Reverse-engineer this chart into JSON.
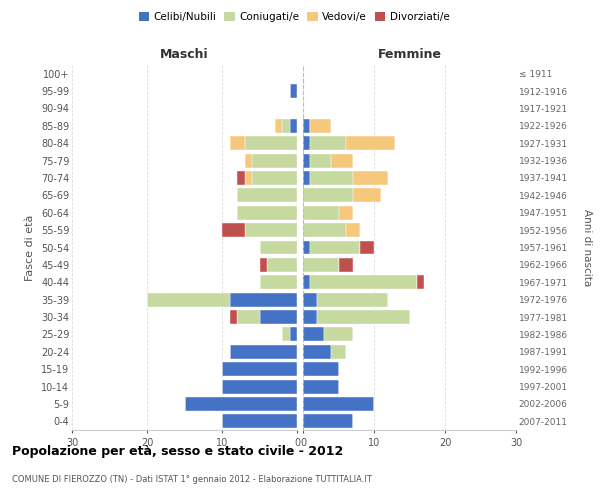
{
  "age_groups": [
    "0-4",
    "5-9",
    "10-14",
    "15-19",
    "20-24",
    "25-29",
    "30-34",
    "35-39",
    "40-44",
    "45-49",
    "50-54",
    "55-59",
    "60-64",
    "65-69",
    "70-74",
    "75-79",
    "80-84",
    "85-89",
    "90-94",
    "95-99",
    "100+"
  ],
  "birth_years": [
    "2007-2011",
    "2002-2006",
    "1997-2001",
    "1992-1996",
    "1987-1991",
    "1982-1986",
    "1977-1981",
    "1972-1976",
    "1967-1971",
    "1962-1966",
    "1957-1961",
    "1952-1956",
    "1947-1951",
    "1942-1946",
    "1937-1941",
    "1932-1936",
    "1927-1931",
    "1922-1926",
    "1917-1921",
    "1912-1916",
    "≤ 1911"
  ],
  "male": {
    "celibinubili": [
      10,
      15,
      10,
      10,
      9,
      1,
      5,
      9,
      0,
      0,
      0,
      0,
      0,
      0,
      0,
      0,
      0,
      1,
      0,
      1,
      0
    ],
    "coniugati": [
      0,
      0,
      0,
      0,
      0,
      1,
      3,
      11,
      5,
      4,
      5,
      7,
      8,
      8,
      6,
      6,
      7,
      1,
      0,
      0,
      0
    ],
    "vedovi": [
      0,
      0,
      0,
      0,
      0,
      0,
      0,
      0,
      0,
      0,
      0,
      0,
      0,
      0,
      1,
      1,
      2,
      1,
      0,
      0,
      0
    ],
    "divorziati": [
      0,
      0,
      0,
      0,
      0,
      0,
      1,
      0,
      0,
      1,
      0,
      3,
      0,
      0,
      1,
      0,
      0,
      0,
      0,
      0,
      0
    ]
  },
  "female": {
    "celibinubili": [
      7,
      10,
      5,
      5,
      4,
      3,
      2,
      2,
      1,
      0,
      1,
      0,
      0,
      0,
      1,
      1,
      1,
      1,
      0,
      0,
      0
    ],
    "coniugati": [
      0,
      0,
      0,
      0,
      2,
      4,
      13,
      10,
      15,
      5,
      7,
      6,
      5,
      7,
      6,
      3,
      5,
      0,
      0,
      0,
      0
    ],
    "vedovi": [
      0,
      0,
      0,
      0,
      0,
      0,
      0,
      0,
      0,
      0,
      0,
      2,
      2,
      4,
      5,
      3,
      7,
      3,
      0,
      0,
      0
    ],
    "divorziati": [
      0,
      0,
      0,
      0,
      0,
      0,
      0,
      0,
      1,
      2,
      2,
      0,
      0,
      0,
      0,
      0,
      0,
      0,
      0,
      0,
      0
    ]
  },
  "colors": {
    "celibinubili": "#4472C4",
    "coniugati": "#C6D9A0",
    "vedovi": "#F5C87C",
    "divorziati": "#C0504D"
  },
  "xlim": 30,
  "title": "Popolazione per età, sesso e stato civile - 2012",
  "subtitle": "COMUNE DI FIEROZZO (TN) - Dati ISTAT 1° gennaio 2012 - Elaborazione TUTTITALIA.IT",
  "ylabel_left": "Fasce di età",
  "ylabel_right": "Anni di nascita",
  "xlabel_left": "Maschi",
  "xlabel_right": "Femmine"
}
